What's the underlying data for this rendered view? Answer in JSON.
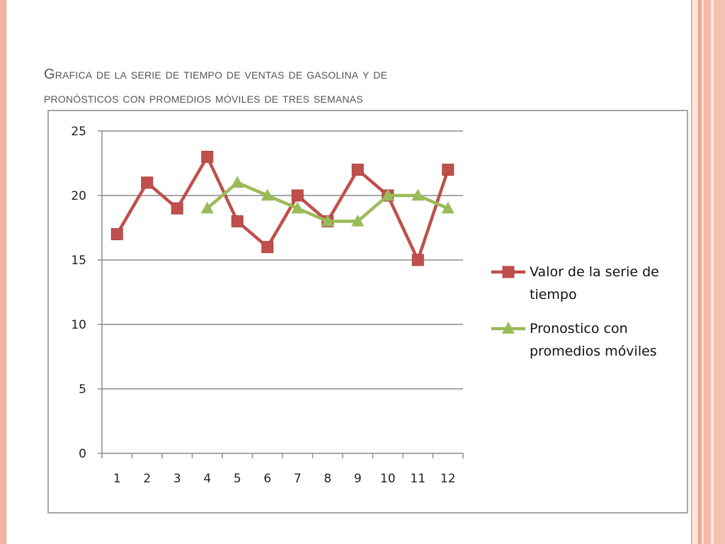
{
  "slide": {
    "title_line1": "Grafica de la serie de tiempo de ventas de gasolina y de",
    "title_line2": "pronósticos con promedios móviles de tres semanas"
  },
  "colors": {
    "accent_border": "#f3b4a3",
    "series_red": "#c0504d",
    "series_green": "#9bbb59",
    "grid": "#888888",
    "title_text": "#555555"
  },
  "chart_data": {
    "type": "line",
    "x": [
      1,
      2,
      3,
      4,
      5,
      6,
      7,
      8,
      9,
      10,
      11,
      12
    ],
    "categories": [
      "1",
      "2",
      "3",
      "4",
      "5",
      "6",
      "7",
      "8",
      "9",
      "10",
      "11",
      "12"
    ],
    "series": [
      {
        "name": "Valor de la serie de tiempo",
        "marker": "square",
        "color": "#c0504d",
        "values": [
          17,
          21,
          19,
          23,
          18,
          16,
          20,
          18,
          22,
          20,
          15,
          22
        ]
      },
      {
        "name": "Pronostico con promedios móviles",
        "marker": "triangle",
        "color": "#9bbb59",
        "values": [
          null,
          null,
          null,
          19,
          21,
          20,
          19,
          18,
          18,
          20,
          20,
          19
        ]
      }
    ],
    "ylim": [
      0,
      25
    ],
    "yticks": [
      0,
      5,
      10,
      15,
      20,
      25
    ],
    "grid": true,
    "legend_position": "right",
    "title": "",
    "xlabel": "",
    "ylabel": ""
  }
}
